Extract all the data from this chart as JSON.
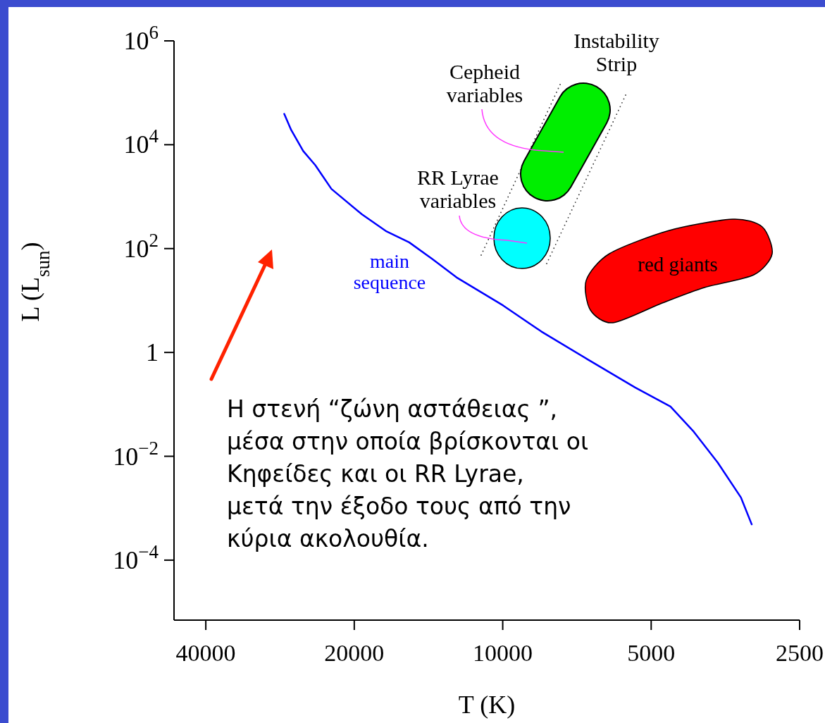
{
  "chart_data": {
    "type": "line",
    "xlabel": "T (K)",
    "ylabel": "L (L$_{sun}$)",
    "log": "xy",
    "grid": false,
    "legend": false,
    "marker": "none",
    "line_style": "solid",
    "xlim": [
      46400,
      2500
    ],
    "xticks": [
      40000,
      20000,
      10000,
      5000,
      2500
    ],
    "ylim": [
      7e-06,
      1000000
    ],
    "yticks": [
      {
        "value": 1000000,
        "label": "10$^{6}$"
      },
      {
        "value": 10000,
        "label": "10$^{4}$"
      },
      {
        "value": 100,
        "label": "10$^{2}$"
      },
      1,
      {
        "value": 0.01,
        "label": "10$^{−2}$"
      },
      {
        "value": 0.0001,
        "label": "10$^{−4}$"
      }
    ],
    "series": [
      {
        "name": "main sequence",
        "color": "#0000ff",
        "x": [
          27740,
          26850,
          25380,
          24000,
          22250,
          19310,
          17260,
          15480,
          13880,
          12410,
          9985,
          8356,
          6722,
          5389,
          4570,
          4098,
          3664,
          3287,
          3127
        ],
        "values": [
          39350,
          19230,
          7550,
          4055,
          1408,
          459,
          218,
          132,
          62.7,
          27.9,
          8.04,
          2.54,
          0.733,
          0.211,
          0.091,
          0.0297,
          0.00755,
          0.0016,
          0.000489
        ]
      }
    ],
    "annotations": [
      "Instability\nStrip",
      "Cepheid\nvariables",
      "RR Lyrae\nvariables",
      "red giants",
      "Η στενή “ζώνη αστάθειας ”,\nμέσα στην οποία βρίσκονται οι\nΚηφείδες και οι RR Lyrae,\nμετά την έξοδο τους από την\nκύρια ακολουθία."
    ]
  }
}
